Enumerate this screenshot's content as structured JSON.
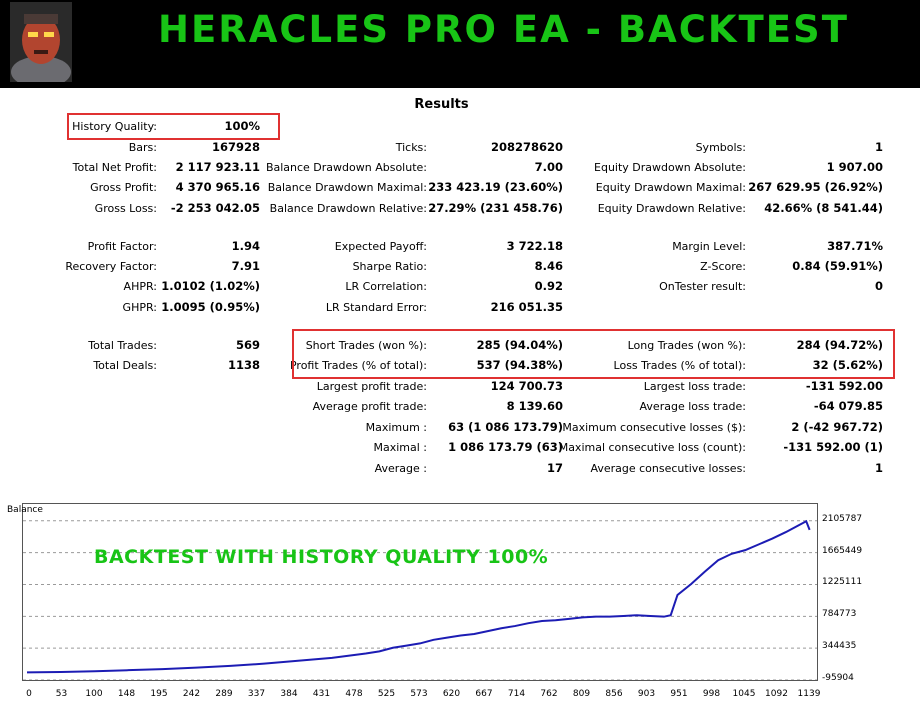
{
  "header": {
    "title": "HERACLES PRO EA - BACKTEST"
  },
  "results_title": "Results",
  "left_rows": [
    {
      "label": "History Quality:",
      "value": "100%"
    },
    {
      "label": "Bars:",
      "value": "167928"
    },
    {
      "label": "Total Net Profit:",
      "value": "2 117 923.11"
    },
    {
      "label": "Gross Profit:",
      "value": "4 370 965.16"
    },
    {
      "label": "Gross Loss:",
      "value": "-2 253 042.05"
    },
    {
      "label": "Profit Factor:",
      "value": "1.94"
    },
    {
      "label": "Recovery Factor:",
      "value": "7.91"
    },
    {
      "label": "AHPR:",
      "value": "1.0102 (1.02%)"
    },
    {
      "label": "GHPR:",
      "value": "1.0095 (0.95%)"
    },
    {
      "label": "Total Trades:",
      "value": "569"
    },
    {
      "label": "Total Deals:",
      "value": "1138"
    }
  ],
  "mid_rows": [
    {
      "label": "Ticks:",
      "value": "208278620"
    },
    {
      "label": "Balance Drawdown Absolute:",
      "value": "7.00"
    },
    {
      "label": "Balance Drawdown Maximal:",
      "value": "233 423.19 (23.60%)"
    },
    {
      "label": "Balance Drawdown Relative:",
      "value": "27.29% (231 458.76)"
    },
    {
      "label": "Expected Payoff:",
      "value": "3 722.18"
    },
    {
      "label": "Sharpe Ratio:",
      "value": "8.46"
    },
    {
      "label": "LR Correlation:",
      "value": "0.92"
    },
    {
      "label": "LR Standard Error:",
      "value": "216 051.35"
    },
    {
      "label": "Short Trades (won %):",
      "value": "285 (94.04%)"
    },
    {
      "label": "Profit Trades (% of total):",
      "value": "537 (94.38%)"
    },
    {
      "label": "Largest profit trade:",
      "value": "124 700.73"
    },
    {
      "label": "Average profit trade:",
      "value": "8 139.60"
    },
    {
      "label": "Maximum :",
      "value": "63 (1 086 173.79)"
    },
    {
      "label": "Maximal :",
      "value": "1 086 173.79 (63)"
    },
    {
      "label": "Average :",
      "value": "17"
    }
  ],
  "right_rows": [
    {
      "label": "Symbols:",
      "value": "1"
    },
    {
      "label": "Equity Drawdown Absolute:",
      "value": "1 907.00"
    },
    {
      "label": "Equity Drawdown Maximal:",
      "value": "267 629.95 (26.92%)"
    },
    {
      "label": "Equity Drawdown Relative:",
      "value": "42.66% (8 541.44)"
    },
    {
      "label": "Margin Level:",
      "value": "387.71%"
    },
    {
      "label": "Z-Score:",
      "value": "0.84 (59.91%)"
    },
    {
      "label": "OnTester result:",
      "value": "0"
    },
    {
      "label": "Long Trades (won %):",
      "value": "284 (94.72%)"
    },
    {
      "label": "Loss Trades (% of total):",
      "value": "32 (5.62%)"
    },
    {
      "label": "Largest loss trade:",
      "value": "-131 592.00"
    },
    {
      "label": "Average loss trade:",
      "value": "-64 079.85"
    },
    {
      "label": "Maximum consecutive losses ($):",
      "value": "2 (-42 967.72)"
    },
    {
      "label": "Maximal consecutive loss (count):",
      "value": "-131 592.00 (1)"
    },
    {
      "label": "Average consecutive losses:",
      "value": "1"
    }
  ],
  "chart_data": {
    "type": "line",
    "title": "Balance",
    "overlay_text": "BACKTEST WITH HISTORY QUALITY 100%",
    "ylim": [
      -95904,
      2200000
    ],
    "xlim": [
      0,
      1160
    ],
    "y_ticks": [
      "2105787",
      "1665449",
      "1225111",
      "784773",
      "344435",
      "-95904"
    ],
    "y_tick_values": [
      2105787,
      1665449,
      1225111,
      784773,
      344435,
      -95904
    ],
    "x_ticks": [
      "0",
      "53",
      "100",
      "148",
      "195",
      "242",
      "289",
      "337",
      "384",
      "431",
      "478",
      "525",
      "573",
      "620",
      "667",
      "714",
      "762",
      "809",
      "856",
      "903",
      "951",
      "998",
      "1045",
      "1092",
      "1139"
    ],
    "line_color": "#1c1cb4",
    "series": [
      {
        "x": [
          0,
          50,
          100,
          150,
          200,
          250,
          300,
          350,
          400,
          450,
          500,
          520,
          540,
          560,
          580,
          600,
          620,
          640,
          660,
          680,
          700,
          720,
          740,
          760,
          780,
          800,
          820,
          840,
          860,
          880,
          900,
          920,
          940,
          950,
          960,
          980,
          1000,
          1020,
          1040,
          1060,
          1080,
          1100,
          1120,
          1140,
          1150,
          1155
        ],
        "y": [
          10000,
          15000,
          25000,
          40000,
          55000,
          75000,
          100000,
          130000,
          170000,
          210000,
          270000,
          300000,
          350000,
          380000,
          410000,
          460000,
          490000,
          520000,
          540000,
          580000,
          620000,
          650000,
          690000,
          720000,
          730000,
          750000,
          770000,
          780000,
          780000,
          790000,
          800000,
          790000,
          780000,
          800000,
          1080000,
          1230000,
          1400000,
          1560000,
          1650000,
          1700000,
          1780000,
          1860000,
          1950000,
          2050000,
          2100000,
          1980000
        ]
      }
    ]
  }
}
